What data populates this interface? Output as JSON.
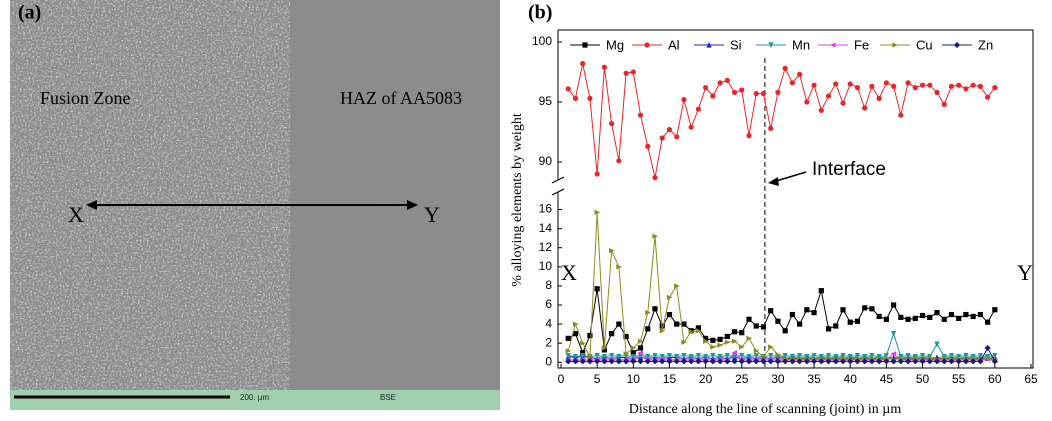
{
  "micrograph": {
    "panel_label": "(a)",
    "left_region": "Fusion Zone",
    "right_region": "HAZ of AA5083",
    "start_point": "X",
    "end_point": "Y",
    "scale_bar": "200. µm",
    "detector": "BSE"
  },
  "chart_data": {
    "type": "line",
    "panel_label": "(b)",
    "x_label": "Distance along the line of scanning (joint) in µm",
    "y_label": "% alloying elements by weight",
    "x": [
      1,
      2,
      3,
      4,
      5,
      6,
      7,
      8,
      9,
      10,
      11,
      12,
      13,
      14,
      15,
      16,
      17,
      18,
      19,
      20,
      21,
      22,
      23,
      24,
      25,
      26,
      27,
      28,
      29,
      30,
      31,
      32,
      33,
      34,
      35,
      36,
      37,
      38,
      39,
      40,
      41,
      42,
      43,
      44,
      45,
      46,
      47,
      48,
      49,
      50,
      51,
      52,
      53,
      54,
      55,
      56,
      57,
      58,
      59,
      60
    ],
    "xlim": [
      0,
      65
    ],
    "xticks": [
      0,
      5,
      10,
      15,
      20,
      25,
      30,
      35,
      40,
      45,
      50,
      55,
      60,
      65
    ],
    "ylim": [
      -0.6,
      17
    ],
    "yticks": [
      0,
      2,
      4,
      6,
      8,
      10,
      12,
      14,
      16
    ],
    "ylim_upper": [
      88,
      101
    ],
    "yticks_upper": [
      90,
      95,
      100
    ],
    "legend": "top",
    "annotations": [
      {
        "text": "Interface",
        "x": 28.2
      },
      {
        "text": "X"
      },
      {
        "text": "Y"
      }
    ],
    "series": [
      {
        "name": "Mg",
        "color": "#000000",
        "marker": "square",
        "values": [
          2.5,
          3.0,
          1.0,
          2.8,
          7.7,
          1.3,
          3.0,
          4.0,
          2.7,
          1.0,
          1.5,
          3.5,
          5.6,
          3.8,
          5.0,
          4.0,
          4.0,
          3.3,
          3.6,
          2.5,
          2.3,
          2.4,
          2.7,
          3.2,
          3.1,
          4.5,
          3.8,
          3.7,
          5.4,
          4.3,
          3.3,
          5.0,
          4.0,
          5.5,
          5.2,
          7.5,
          3.5,
          3.8,
          5.5,
          4.2,
          4.3,
          5.7,
          5.6,
          4.8,
          4.5,
          6.0,
          4.7,
          4.5,
          4.6,
          4.9,
          4.7,
          5.2,
          4.5,
          5.0,
          4.6,
          5.0,
          4.8,
          5.0,
          4.2,
          5.5
        ]
      },
      {
        "name": "Al",
        "color": "#e8262a",
        "marker": "circle",
        "axis": "upper",
        "values": [
          96.1,
          95.3,
          98.2,
          95.3,
          89.0,
          97.9,
          93.2,
          90.1,
          97.4,
          97.5,
          93.9,
          91.3,
          88.7,
          92.0,
          92.7,
          92.1,
          95.2,
          92.9,
          94.4,
          96.2,
          95.5,
          96.6,
          96.8,
          95.8,
          96.0,
          92.2,
          95.7,
          95.7,
          92.8,
          95.8,
          97.8,
          96.6,
          97.3,
          95.0,
          96.4,
          94.3,
          95.5,
          96.5,
          94.9,
          96.5,
          96.2,
          94.5,
          96.3,
          95.3,
          96.6,
          96.3,
          93.9,
          96.6,
          96.2,
          96.4,
          96.4,
          95.8,
          94.8,
          96.3,
          96.4,
          96.1,
          96.4,
          96.3,
          95.4,
          96.2
        ]
      },
      {
        "name": "Si",
        "color": "#2020d0",
        "marker": "triangle-up",
        "values": [
          0.6,
          0.5,
          0.6,
          0.5,
          0.4,
          0.5,
          0.4,
          0.5,
          0.5,
          0.4,
          0.5,
          0.4,
          0.5,
          0.4,
          0.5,
          0.5,
          0.4,
          0.5,
          0.4,
          0.5,
          0.4,
          0.5,
          0.4,
          0.5,
          0.4,
          0.5,
          0.4,
          0.5,
          0.4,
          0.5,
          0.4,
          0.5,
          0.4,
          0.5,
          0.4,
          0.5,
          0.4,
          0.5,
          0.4,
          0.5,
          0.4,
          0.5,
          0.4,
          0.5,
          0.4,
          0.5,
          0.4,
          0.5,
          0.4,
          0.5,
          0.4,
          0.5,
          0.4,
          0.5,
          0.4,
          0.5,
          0.4,
          0.5,
          0.4,
          0.5
        ]
      },
      {
        "name": "Mn",
        "color": "#1a9a9a",
        "marker": "triangle-down",
        "values": [
          0.7,
          0.6,
          0.7,
          0.6,
          0.7,
          0.6,
          0.7,
          0.6,
          0.7,
          0.6,
          0.7,
          0.6,
          0.7,
          0.6,
          0.7,
          0.6,
          0.7,
          0.6,
          0.7,
          0.6,
          0.7,
          0.6,
          0.7,
          0.6,
          0.7,
          0.6,
          0.7,
          0.6,
          0.7,
          0.6,
          0.7,
          0.6,
          0.7,
          0.6,
          0.7,
          0.6,
          0.7,
          0.6,
          0.7,
          0.6,
          0.7,
          0.6,
          0.7,
          0.6,
          0.7,
          3.0,
          0.6,
          0.7,
          0.6,
          0.7,
          0.6,
          1.9,
          0.6,
          0.7,
          0.6,
          0.7,
          0.6,
          0.7,
          0.6,
          0.7
        ]
      },
      {
        "name": "Fe",
        "color": "#e040e0",
        "marker": "triangle-left",
        "values": [
          0.3,
          0.2,
          0.3,
          0.2,
          0.3,
          0.2,
          0.3,
          0.2,
          0.3,
          0.2,
          1.0,
          0.3,
          0.2,
          0.3,
          0.2,
          0.3,
          0.2,
          0.3,
          0.2,
          0.3,
          0.2,
          0.3,
          0.2,
          1.0,
          0.3,
          0.2,
          0.3,
          0.2,
          0.3,
          0.2,
          0.3,
          0.2,
          0.3,
          0.2,
          0.3,
          0.2,
          0.3,
          0.2,
          0.3,
          0.2,
          0.3,
          0.2,
          0.3,
          0.2,
          0.3,
          0.9,
          0.3,
          0.2,
          0.3,
          0.2,
          0.3,
          0.2,
          0.3,
          0.2,
          0.3,
          0.2,
          0.3,
          0.2,
          0.3,
          0.2
        ]
      },
      {
        "name": "Cu",
        "color": "#8c8c1e",
        "marker": "triangle-right",
        "values": [
          1.2,
          4.0,
          2.0,
          0.6,
          15.7,
          1.5,
          11.7,
          10.0,
          0.9,
          1.5,
          2.2,
          5.2,
          13.2,
          3.3,
          6.8,
          8.0,
          2.1,
          3.2,
          3.3,
          2.2,
          1.6,
          1.8,
          2.1,
          2.2,
          1.6,
          2.5,
          1.2,
          0.6,
          1.6,
          0.8,
          0.4,
          0.3,
          0.4,
          0.3,
          0.4,
          0.3,
          0.4,
          0.3,
          0.4,
          0.3,
          0.4,
          0.3,
          0.4,
          0.3,
          0.4,
          0.3,
          0.4,
          0.3,
          0.4,
          0.3,
          0.4,
          0.3,
          0.4,
          0.3,
          0.4,
          0.3,
          0.4,
          0.3,
          0.4,
          0.3
        ]
      },
      {
        "name": "Zn",
        "color": "#1a1a80",
        "marker": "diamond",
        "values": [
          0.1,
          0.1,
          0.1,
          0.1,
          0.1,
          0.1,
          0.1,
          0.1,
          0.1,
          0.1,
          0.1,
          0.1,
          0.1,
          0.1,
          0.1,
          0.1,
          0.1,
          0.1,
          0.1,
          0.1,
          0.1,
          0.1,
          0.1,
          0.1,
          0.1,
          0.1,
          0.1,
          0.1,
          0.1,
          0.1,
          0.1,
          0.1,
          0.1,
          0.1,
          0.1,
          0.1,
          0.1,
          0.1,
          0.1,
          0.1,
          0.1,
          0.1,
          0.1,
          0.1,
          0.1,
          0.1,
          0.1,
          0.1,
          0.1,
          0.1,
          0.1,
          0.1,
          0.1,
          0.1,
          0.1,
          0.1,
          0.1,
          0.1,
          1.5,
          0.1
        ]
      }
    ]
  }
}
